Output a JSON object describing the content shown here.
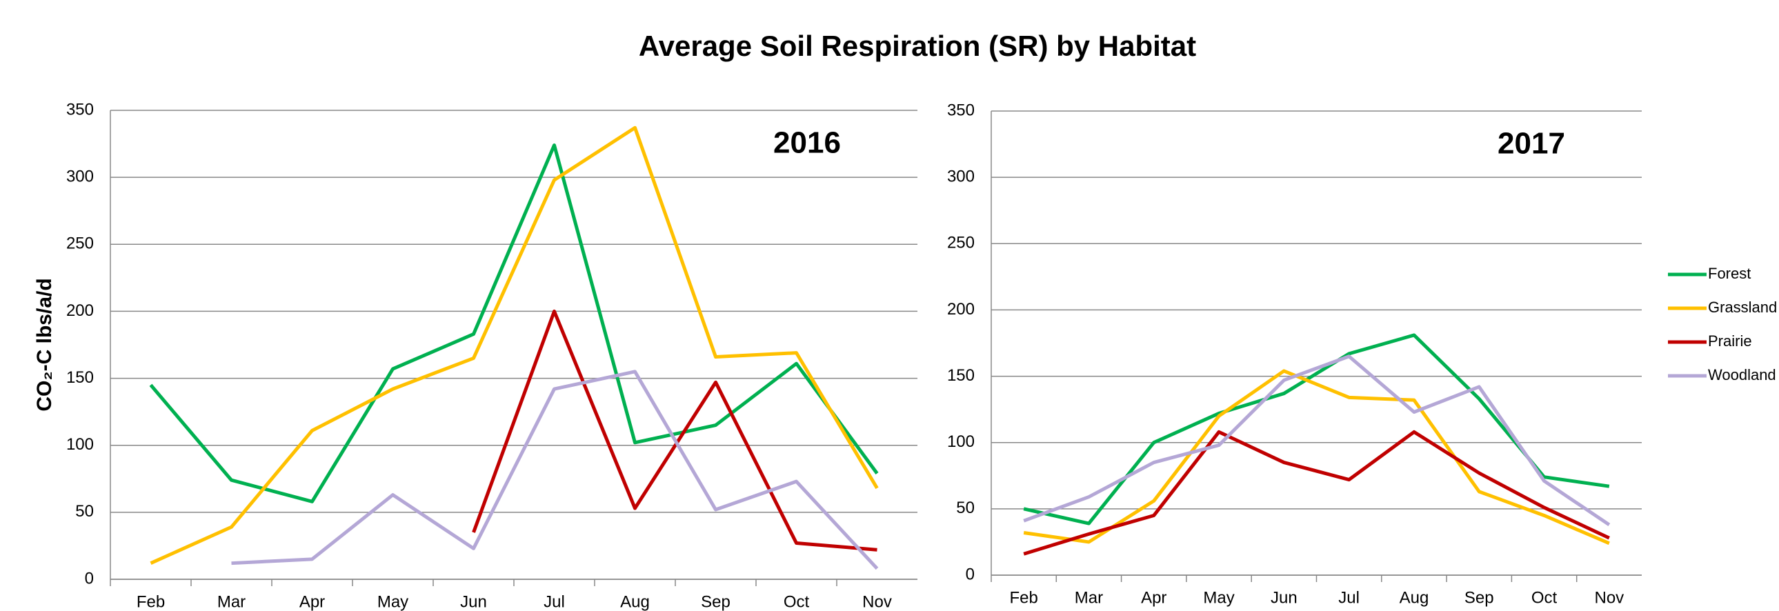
{
  "title": "Average Soil Respiration (SR) by Habitat",
  "chart_data": [
    {
      "type": "line",
      "annotation": "2016",
      "ylabel": "CO₂-C lbs/a/d",
      "categories": [
        "Feb",
        "Mar",
        "Apr",
        "May",
        "Jun",
        "Jul",
        "Aug",
        "Sep",
        "Oct",
        "Nov"
      ],
      "ylim": [
        0,
        350
      ],
      "yticks": [
        0,
        50,
        100,
        150,
        200,
        250,
        300,
        350
      ],
      "grid": true,
      "series": [
        {
          "name": "Forest",
          "color": "#00b050",
          "values": [
            145,
            74,
            58,
            157,
            183,
            324,
            102,
            115,
            161,
            79
          ]
        },
        {
          "name": "Grassland",
          "color": "#ffc000",
          "values": [
            12,
            39,
            111,
            142,
            165,
            298,
            337,
            166,
            169,
            68
          ]
        },
        {
          "name": "Prairie",
          "color": "#c00000",
          "values": [
            null,
            null,
            null,
            null,
            35,
            200,
            53,
            147,
            27,
            22
          ]
        },
        {
          "name": "Woodland",
          "color": "#b4a7d6",
          "values": [
            null,
            12,
            15,
            63,
            23,
            142,
            155,
            52,
            73,
            8
          ]
        }
      ]
    },
    {
      "type": "line",
      "annotation": "2017",
      "categories": [
        "Feb",
        "Mar",
        "Apr",
        "May",
        "Jun",
        "Jul",
        "Aug",
        "Sep",
        "Oct",
        "Nov"
      ],
      "ylim": [
        0,
        350
      ],
      "yticks": [
        0,
        50,
        100,
        150,
        200,
        250,
        300,
        350
      ],
      "grid": true,
      "legend": "right",
      "series": [
        {
          "name": "Forest",
          "color": "#00b050",
          "values": [
            50,
            39,
            100,
            122,
            137,
            167,
            181,
            133,
            74,
            67
          ]
        },
        {
          "name": "Grassland",
          "color": "#ffc000",
          "values": [
            32,
            25,
            56,
            120,
            154,
            134,
            132,
            63,
            45,
            24
          ]
        },
        {
          "name": "Prairie",
          "color": "#c00000",
          "values": [
            16,
            31,
            45,
            108,
            85,
            72,
            108,
            77,
            51,
            28
          ]
        },
        {
          "name": "Woodland",
          "color": "#b4a7d6",
          "values": [
            41,
            59,
            85,
            98,
            147,
            165,
            123,
            142,
            71,
            38
          ]
        }
      ]
    }
  ]
}
